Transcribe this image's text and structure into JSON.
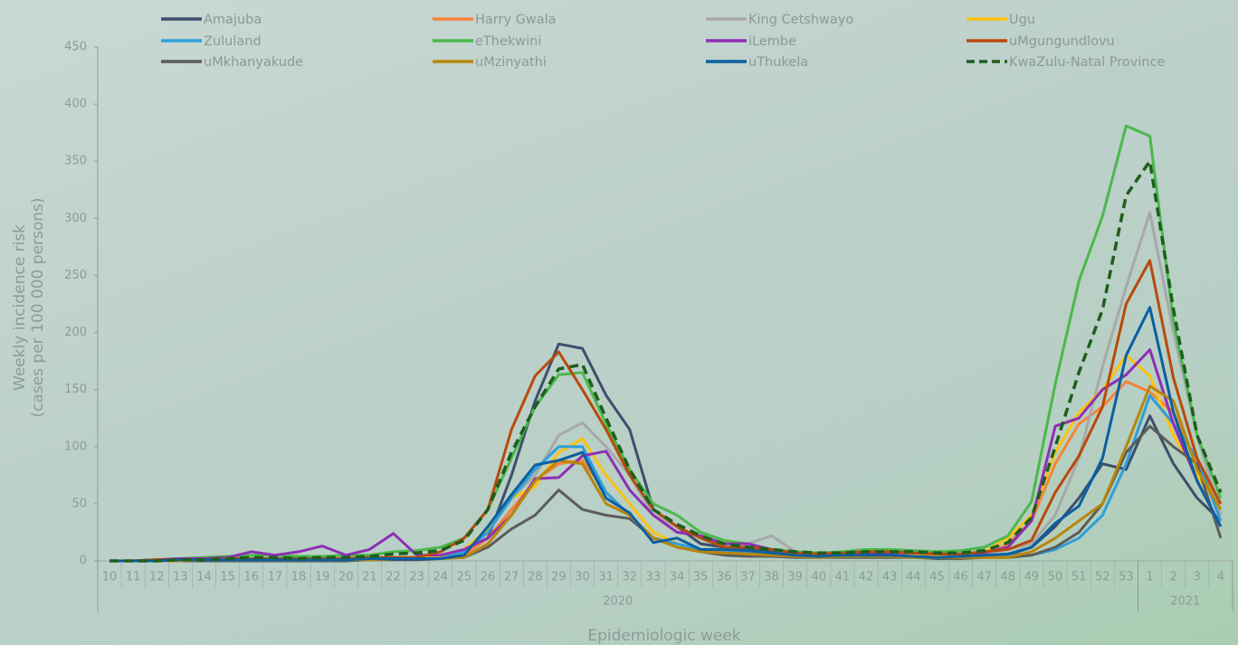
{
  "chart_data": {
    "type": "line",
    "ylabel": [
      "Weekly incidence risk",
      "(cases per 100 000 persons)"
    ],
    "xlabel": "Epidemiologic week",
    "categories": [
      "10",
      "11",
      "12",
      "13",
      "14",
      "15",
      "16",
      "17",
      "18",
      "19",
      "20",
      "21",
      "22",
      "23",
      "24",
      "25",
      "26",
      "27",
      "28",
      "29",
      "30",
      "31",
      "32",
      "33",
      "34",
      "35",
      "36",
      "37",
      "38",
      "39",
      "40",
      "41",
      "42",
      "43",
      "44",
      "45",
      "46",
      "47",
      "48",
      "49",
      "50",
      "51",
      "52",
      "53",
      "1",
      "2",
      "3",
      "4"
    ],
    "x_groups": [
      "2020",
      "2021"
    ],
    "ylim": [
      0,
      450
    ],
    "yticks": [
      0,
      50,
      100,
      150,
      200,
      250,
      300,
      350,
      400,
      450
    ],
    "series": [
      {
        "name": "Amajuba",
        "color": "#3c4f6c",
        "values": [
          0,
          0,
          0,
          0,
          0,
          0,
          0,
          0,
          0,
          0,
          0,
          1,
          1,
          1,
          2,
          5,
          20,
          75,
          140,
          190,
          186,
          145,
          115,
          45,
          30,
          15,
          12,
          10,
          8,
          5,
          5,
          5,
          5,
          5,
          5,
          4,
          5,
          5,
          5,
          12,
          30,
          55,
          85,
          80,
          127,
          85,
          55,
          35
        ]
      },
      {
        "name": "Harry Gwala",
        "color": "#f5843a",
        "values": [
          0,
          0,
          0,
          1,
          1,
          1,
          1,
          1,
          1,
          1,
          1,
          2,
          2,
          2,
          2,
          5,
          20,
          45,
          70,
          85,
          88,
          60,
          40,
          20,
          15,
          10,
          8,
          8,
          7,
          5,
          5,
          5,
          5,
          5,
          5,
          5,
          5,
          5,
          15,
          35,
          85,
          120,
          135,
          157,
          148,
          130,
          85,
          50
        ]
      },
      {
        "name": "King Cetshwayo",
        "color": "#a8a8a8",
        "values": [
          0,
          0,
          1,
          1,
          1,
          2,
          2,
          2,
          2,
          2,
          2,
          3,
          3,
          3,
          3,
          8,
          25,
          55,
          75,
          110,
          121,
          100,
          75,
          40,
          30,
          20,
          15,
          15,
          22,
          8,
          6,
          6,
          6,
          6,
          5,
          5,
          5,
          6,
          10,
          15,
          40,
          90,
          170,
          240,
          305,
          200,
          110,
          40
        ]
      },
      {
        "name": "Ugu",
        "color": "#ffc20e",
        "values": [
          0,
          0,
          1,
          1,
          1,
          2,
          2,
          2,
          2,
          2,
          2,
          3,
          3,
          3,
          3,
          10,
          28,
          55,
          65,
          95,
          107,
          75,
          50,
          25,
          15,
          10,
          8,
          8,
          6,
          5,
          4,
          5,
          5,
          5,
          5,
          4,
          5,
          8,
          20,
          40,
          95,
          130,
          150,
          180,
          162,
          110,
          75,
          45
        ]
      },
      {
        "name": "Zululand",
        "color": "#2e9fd8",
        "values": [
          0,
          0,
          0,
          1,
          1,
          1,
          1,
          1,
          1,
          1,
          1,
          2,
          2,
          2,
          2,
          8,
          25,
          55,
          80,
          100,
          100,
          60,
          40,
          20,
          15,
          10,
          8,
          8,
          6,
          5,
          4,
          4,
          4,
          4,
          4,
          3,
          4,
          4,
          5,
          5,
          10,
          20,
          40,
          85,
          145,
          120,
          90,
          35
        ]
      },
      {
        "name": "eThekwini",
        "color": "#4cb84c",
        "values": [
          0,
          0,
          1,
          2,
          3,
          4,
          5,
          5,
          4,
          4,
          5,
          5,
          8,
          9,
          12,
          20,
          45,
          90,
          135,
          163,
          165,
          120,
          80,
          50,
          40,
          25,
          18,
          15,
          10,
          8,
          7,
          8,
          10,
          10,
          9,
          8,
          9,
          12,
          22,
          52,
          155,
          245,
          302,
          381,
          372,
          210,
          110,
          55
        ]
      },
      {
        "name": "iLembe",
        "color": "#8e2fb5",
        "values": [
          0,
          0,
          1,
          2,
          2,
          3,
          8,
          5,
          8,
          13,
          5,
          10,
          24,
          5,
          5,
          10,
          20,
          40,
          72,
          73,
          92,
          96,
          62,
          40,
          25,
          22,
          15,
          15,
          10,
          6,
          5,
          6,
          7,
          7,
          7,
          6,
          6,
          7,
          12,
          35,
          118,
          125,
          150,
          163,
          185,
          120,
          70,
          30
        ]
      },
      {
        "name": "uMgungundlovu",
        "color": "#b84a0c",
        "values": [
          0,
          0,
          1,
          1,
          1,
          2,
          2,
          2,
          2,
          2,
          2,
          3,
          3,
          3,
          8,
          20,
          45,
          115,
          162,
          183,
          150,
          115,
          75,
          45,
          30,
          20,
          12,
          12,
          10,
          7,
          6,
          7,
          8,
          8,
          7,
          6,
          6,
          8,
          10,
          18,
          60,
          92,
          135,
          225,
          263,
          160,
          90,
          50
        ]
      },
      {
        "name": "uMkhanyakude",
        "color": "#5c5c5c",
        "values": [
          0,
          0,
          0,
          0,
          1,
          1,
          1,
          1,
          1,
          1,
          1,
          1,
          2,
          2,
          2,
          3,
          12,
          28,
          40,
          62,
          45,
          40,
          37,
          20,
          12,
          8,
          5,
          4,
          4,
          3,
          3,
          3,
          3,
          3,
          3,
          2,
          2,
          3,
          3,
          5,
          12,
          25,
          50,
          95,
          118,
          100,
          85,
          20
        ]
      },
      {
        "name": "uMzinyathi",
        "color": "#b8860b",
        "values": [
          0,
          0,
          0,
          0,
          1,
          1,
          1,
          1,
          1,
          1,
          1,
          1,
          2,
          2,
          2,
          3,
          15,
          40,
          70,
          88,
          85,
          50,
          40,
          20,
          12,
          8,
          7,
          6,
          5,
          4,
          3,
          4,
          4,
          4,
          3,
          3,
          3,
          3,
          3,
          8,
          20,
          35,
          50,
          100,
          153,
          140,
          80,
          45
        ]
      },
      {
        "name": "uThukela",
        "color": "#0b5fa0",
        "values": [
          0,
          0,
          0,
          1,
          1,
          1,
          1,
          1,
          1,
          1,
          1,
          2,
          2,
          2,
          2,
          5,
          30,
          58,
          84,
          88,
          95,
          55,
          42,
          16,
          20,
          10,
          10,
          9,
          7,
          5,
          4,
          5,
          5,
          5,
          4,
          3,
          4,
          5,
          6,
          12,
          33,
          48,
          90,
          180,
          222,
          130,
          70,
          30
        ]
      },
      {
        "name": "KwaZulu-Natal Province",
        "color": "#1e5e1e",
        "dashed": true,
        "values": [
          0,
          0,
          0,
          1,
          1,
          2,
          3,
          3,
          2,
          3,
          3,
          4,
          6,
          7,
          9,
          18,
          45,
          95,
          135,
          168,
          172,
          125,
          80,
          45,
          32,
          22,
          15,
          12,
          10,
          8,
          7,
          7,
          8,
          8,
          8,
          7,
          7,
          9,
          16,
          38,
          100,
          165,
          220,
          320,
          350,
          220,
          110,
          60
        ]
      }
    ]
  }
}
